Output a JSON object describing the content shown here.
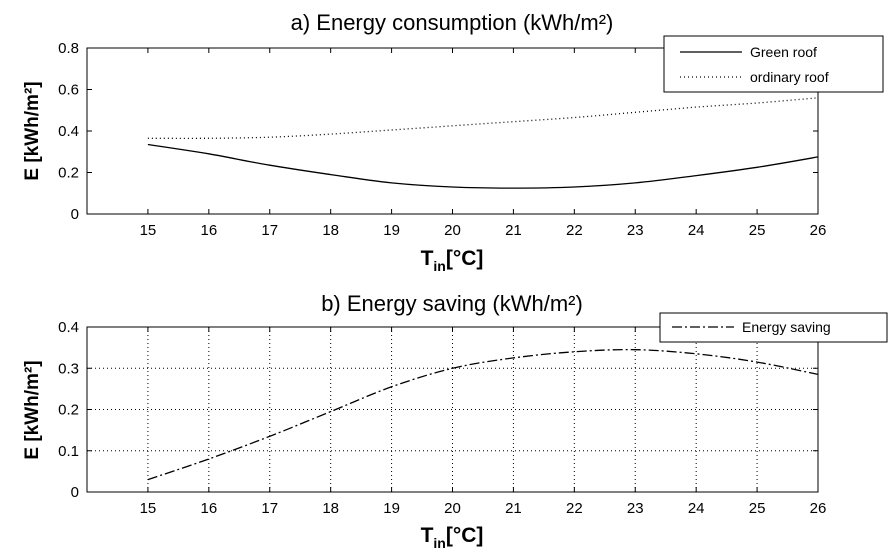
{
  "chart_data": [
    {
      "id": "a",
      "type": "line",
      "title": "a) Energy consumption  (kWh/m²)",
      "xlabel": "T",
      "xlabel_sub": "in",
      "xlabel_unit": "[°C]",
      "ylabel": "E [kWh/m²]",
      "xlim": [
        14,
        26
      ],
      "ylim": [
        0,
        0.8
      ],
      "xticks": [
        "15",
        "16",
        "17",
        "18",
        "19",
        "20",
        "21",
        "22",
        "23",
        "24",
        "25",
        "26"
      ],
      "yticks": [
        "0",
        "0.2",
        "0.4",
        "0.6",
        "0.8"
      ],
      "grid": false,
      "legend_position": "top-right",
      "series": [
        {
          "name": "Green roof",
          "style": "solid",
          "x": [
            15,
            16,
            17,
            18,
            19,
            20,
            21,
            22,
            23,
            24,
            25,
            26
          ],
          "y": [
            0.335,
            0.29,
            0.235,
            0.19,
            0.15,
            0.13,
            0.125,
            0.13,
            0.15,
            0.185,
            0.225,
            0.275
          ]
        },
        {
          "name": "ordinary roof",
          "style": "dotted",
          "x": [
            15,
            16,
            17,
            18,
            19,
            20,
            21,
            22,
            23,
            24,
            25,
            26
          ],
          "y": [
            0.365,
            0.365,
            0.37,
            0.385,
            0.405,
            0.425,
            0.445,
            0.465,
            0.49,
            0.515,
            0.535,
            0.56
          ]
        }
      ]
    },
    {
      "id": "b",
      "type": "line",
      "title": "b) Energy saving (kWh/m²)",
      "xlabel": "T",
      "xlabel_sub": "in",
      "xlabel_unit": "[°C]",
      "ylabel": "E [kWh/m²]",
      "xlim": [
        14,
        26
      ],
      "ylim": [
        0,
        0.4
      ],
      "xticks": [
        "15",
        "16",
        "17",
        "18",
        "19",
        "20",
        "21",
        "22",
        "23",
        "24",
        "25",
        "26"
      ],
      "yticks": [
        "0",
        "0.1",
        "0.2",
        "0.3",
        "0.4"
      ],
      "grid": true,
      "legend_position": "top-right",
      "series": [
        {
          "name": "Energy saving",
          "style": "dashdot",
          "x": [
            15,
            16,
            17,
            18,
            19,
            20,
            21,
            22,
            23,
            24,
            25,
            26
          ],
          "y": [
            0.03,
            0.08,
            0.135,
            0.195,
            0.255,
            0.3,
            0.325,
            0.34,
            0.345,
            0.335,
            0.315,
            0.285
          ]
        }
      ]
    }
  ]
}
